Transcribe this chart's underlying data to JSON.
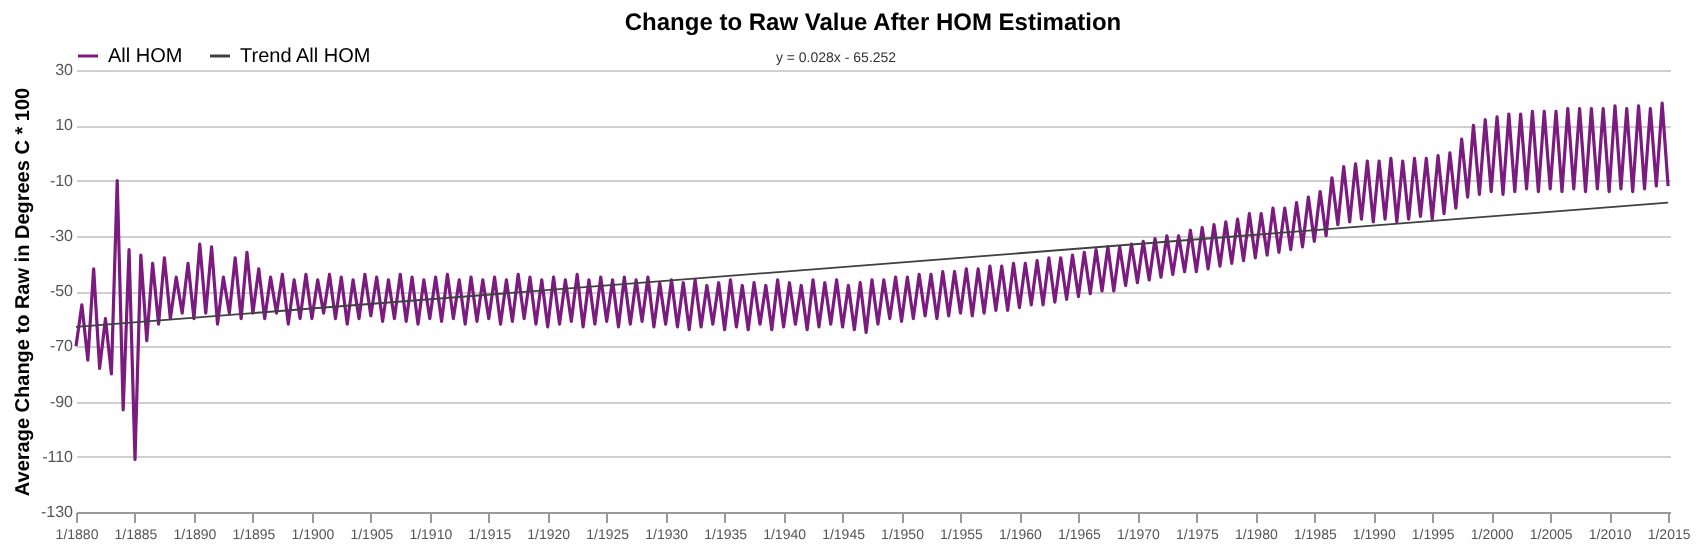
{
  "chart_data": {
    "type": "line",
    "title": "Change to Raw Value After HOM Estimation",
    "ylabel": "Average Change to Raw in Degrees C * 100",
    "annotations": [
      "y = 0.028x - 65.252"
    ],
    "legend": "top",
    "grid": "y",
    "marker": "none",
    "line_style": "solid",
    "ylim": [
      -130,
      30
    ],
    "yticks": [
      -130,
      -110,
      -90,
      -70,
      -50,
      -30,
      -10,
      10,
      30
    ],
    "xlim": [
      "1880-01",
      "2015-03"
    ],
    "xticks": [
      {
        "value": "1880-01",
        "label": "1/1880"
      },
      {
        "value": "1885-01",
        "label": "1/1885"
      },
      {
        "value": "1890-01",
        "label": "1/1890"
      },
      {
        "value": "1895-01",
        "label": "1/1895"
      },
      {
        "value": "1900-01",
        "label": "1/1900"
      },
      {
        "value": "1905-01",
        "label": "1/1905"
      },
      {
        "value": "1910-01",
        "label": "1/1910"
      },
      {
        "value": "1915-01",
        "label": "1/1915"
      },
      {
        "value": "1920-01",
        "label": "1/1920"
      },
      {
        "value": "1925-01",
        "label": "1/1925"
      },
      {
        "value": "1930-01",
        "label": "1/1930"
      },
      {
        "value": "1935-01",
        "label": "1/1935"
      },
      {
        "value": "1940-01",
        "label": "1/1940"
      },
      {
        "value": "1945-01",
        "label": "1/1945"
      },
      {
        "value": "1950-01",
        "label": "1/1950"
      },
      {
        "value": "1955-01",
        "label": "1/1955"
      },
      {
        "value": "1960-01",
        "label": "1/1960"
      },
      {
        "value": "1965-01",
        "label": "1/1965"
      },
      {
        "value": "1970-01",
        "label": "1/1970"
      },
      {
        "value": "1975-01",
        "label": "1/1975"
      },
      {
        "value": "1980-01",
        "label": "1/1980"
      },
      {
        "value": "1985-01",
        "label": "1/1985"
      },
      {
        "value": "1990-01",
        "label": "1/1990"
      },
      {
        "value": "1995-01",
        "label": "1/1995"
      },
      {
        "value": "2000-01",
        "label": "1/2000"
      },
      {
        "value": "2005-01",
        "label": "1/2005"
      },
      {
        "value": "2010-01",
        "label": "1/2010"
      },
      {
        "value": "2015-01",
        "label": "1/2015"
      }
    ],
    "series": [
      {
        "name": "All HOM",
        "color": "#7b1a7f",
        "x": [
          "1880-01",
          "1880-07",
          "1881-01",
          "1881-07",
          "1882-01",
          "1882-07",
          "1883-01",
          "1883-07",
          "1884-01",
          "1884-07",
          "1885-01",
          "1885-07",
          "1886-01",
          "1886-07",
          "1887-01",
          "1887-07",
          "1888-01",
          "1888-07",
          "1889-01",
          "1889-07",
          "1890-01",
          "1890-07",
          "1891-01",
          "1891-07",
          "1892-01",
          "1892-07",
          "1893-01",
          "1893-07",
          "1894-01",
          "1894-07",
          "1895-01",
          "1895-07",
          "1896-01",
          "1896-07",
          "1897-01",
          "1897-07",
          "1898-01",
          "1898-07",
          "1899-01",
          "1899-07",
          "1900-01",
          "1900-07",
          "1901-01",
          "1901-07",
          "1902-01",
          "1902-07",
          "1903-01",
          "1903-07",
          "1904-01",
          "1904-07",
          "1905-01",
          "1905-07",
          "1906-01",
          "1906-07",
          "1907-01",
          "1907-07",
          "1908-01",
          "1908-07",
          "1909-01",
          "1909-07",
          "1910-01",
          "1910-07",
          "1911-01",
          "1911-07",
          "1912-01",
          "1912-07",
          "1913-01",
          "1913-07",
          "1914-01",
          "1914-07",
          "1915-01",
          "1915-07",
          "1916-01",
          "1916-07",
          "1917-01",
          "1917-07",
          "1918-01",
          "1918-07",
          "1919-01",
          "1919-07",
          "1920-01",
          "1920-07",
          "1921-01",
          "1921-07",
          "1922-01",
          "1922-07",
          "1923-01",
          "1923-07",
          "1924-01",
          "1924-07",
          "1925-01",
          "1925-07",
          "1926-01",
          "1926-07",
          "1927-01",
          "1927-07",
          "1928-01",
          "1928-07",
          "1929-01",
          "1929-07",
          "1930-01",
          "1930-07",
          "1931-01",
          "1931-07",
          "1932-01",
          "1932-07",
          "1933-01",
          "1933-07",
          "1934-01",
          "1934-07",
          "1935-01",
          "1935-07",
          "1936-01",
          "1936-07",
          "1937-01",
          "1937-07",
          "1938-01",
          "1938-07",
          "1939-01",
          "1939-07",
          "1940-01",
          "1940-07",
          "1941-01",
          "1941-07",
          "1942-01",
          "1942-07",
          "1943-01",
          "1943-07",
          "1944-01",
          "1944-07",
          "1945-01",
          "1945-07",
          "1946-01",
          "1946-07",
          "1947-01",
          "1947-07",
          "1948-01",
          "1948-07",
          "1949-01",
          "1949-07",
          "1950-01",
          "1950-07",
          "1951-01",
          "1951-07",
          "1952-01",
          "1952-07",
          "1953-01",
          "1953-07",
          "1954-01",
          "1954-07",
          "1955-01",
          "1955-07",
          "1956-01",
          "1956-07",
          "1957-01",
          "1957-07",
          "1958-01",
          "1958-07",
          "1959-01",
          "1959-07",
          "1960-01",
          "1960-07",
          "1961-01",
          "1961-07",
          "1962-01",
          "1962-07",
          "1963-01",
          "1963-07",
          "1964-01",
          "1964-07",
          "1965-01",
          "1965-07",
          "1966-01",
          "1966-07",
          "1967-01",
          "1967-07",
          "1968-01",
          "1968-07",
          "1969-01",
          "1969-07",
          "1970-01",
          "1970-07",
          "1971-01",
          "1971-07",
          "1972-01",
          "1972-07",
          "1973-01",
          "1973-07",
          "1974-01",
          "1974-07",
          "1975-01",
          "1975-07",
          "1976-01",
          "1976-07",
          "1977-01",
          "1977-07",
          "1978-01",
          "1978-07",
          "1979-01",
          "1979-07",
          "1980-01",
          "1980-07",
          "1981-01",
          "1981-07",
          "1982-01",
          "1982-07",
          "1983-01",
          "1983-07",
          "1984-01",
          "1984-07",
          "1985-01",
          "1985-07",
          "1986-01",
          "1986-07",
          "1987-01",
          "1987-07",
          "1988-01",
          "1988-07",
          "1989-01",
          "1989-07",
          "1990-01",
          "1990-07",
          "1991-01",
          "1991-07",
          "1992-01",
          "1992-07",
          "1993-01",
          "1993-07",
          "1994-01",
          "1994-07",
          "1995-01",
          "1995-07",
          "1996-01",
          "1996-07",
          "1997-01",
          "1997-07",
          "1998-01",
          "1998-07",
          "1999-01",
          "1999-07",
          "2000-01",
          "2000-07",
          "2001-01",
          "2001-07",
          "2002-01",
          "2002-07",
          "2003-01",
          "2003-07",
          "2004-01",
          "2004-07",
          "2005-01",
          "2005-07",
          "2006-01",
          "2006-07",
          "2007-01",
          "2007-07",
          "2008-01",
          "2008-07",
          "2009-01",
          "2009-07",
          "2010-01",
          "2010-07",
          "2011-01",
          "2011-07",
          "2012-01",
          "2012-07",
          "2013-01",
          "2013-07",
          "2014-01",
          "2014-07",
          "2015-01"
        ],
        "values": [
          -70,
          -55,
          -75,
          -42,
          -78,
          -60,
          -80,
          -10,
          -93,
          -35,
          -111,
          -37,
          -68,
          -40,
          -62,
          -38,
          -60,
          -45,
          -58,
          -40,
          -60,
          -33,
          -58,
          -34,
          -62,
          -45,
          -58,
          -38,
          -60,
          -36,
          -58,
          -42,
          -60,
          -45,
          -58,
          -44,
          -62,
          -46,
          -60,
          -44,
          -60,
          -46,
          -58,
          -44,
          -60,
          -45,
          -62,
          -46,
          -60,
          -44,
          -59,
          -45,
          -61,
          -46,
          -60,
          -44,
          -61,
          -45,
          -62,
          -46,
          -60,
          -45,
          -61,
          -44,
          -60,
          -46,
          -62,
          -45,
          -61,
          -46,
          -60,
          -45,
          -62,
          -46,
          -61,
          -44,
          -60,
          -45,
          -62,
          -46,
          -63,
          -45,
          -62,
          -46,
          -61,
          -44,
          -63,
          -46,
          -62,
          -45,
          -61,
          -46,
          -63,
          -45,
          -62,
          -46,
          -61,
          -45,
          -63,
          -47,
          -62,
          -46,
          -63,
          -47,
          -64,
          -46,
          -63,
          -48,
          -62,
          -47,
          -64,
          -46,
          -63,
          -48,
          -64,
          -47,
          -62,
          -48,
          -64,
          -46,
          -63,
          -47,
          -62,
          -48,
          -64,
          -46,
          -63,
          -47,
          -62,
          -46,
          -63,
          -48,
          -64,
          -47,
          -65,
          -46,
          -62,
          -46,
          -60,
          -45,
          -61,
          -45,
          -60,
          -44,
          -59,
          -44,
          -60,
          -43,
          -59,
          -43,
          -58,
          -42,
          -59,
          -42,
          -58,
          -41,
          -57,
          -41,
          -57,
          -40,
          -56,
          -40,
          -55,
          -39,
          -55,
          -38,
          -54,
          -38,
          -53,
          -37,
          -52,
          -36,
          -51,
          -35,
          -50,
          -34,
          -50,
          -34,
          -48,
          -33,
          -47,
          -32,
          -46,
          -31,
          -45,
          -30,
          -44,
          -30,
          -43,
          -28,
          -43,
          -27,
          -42,
          -26,
          -41,
          -25,
          -40,
          -24,
          -39,
          -22,
          -38,
          -22,
          -37,
          -20,
          -36,
          -20,
          -35,
          -18,
          -34,
          -16,
          -32,
          -14,
          -30,
          -9,
          -26,
          -5,
          -25,
          -4,
          -24,
          -3,
          -25,
          -3,
          -24,
          -2,
          -25,
          -3,
          -24,
          -2,
          -23,
          -2,
          -24,
          -1,
          -22,
          0,
          -20,
          5,
          -16,
          10,
          -15,
          12,
          -14,
          13,
          -15,
          14,
          -14,
          14,
          -13,
          15,
          -14,
          15,
          -13,
          15,
          -14,
          16,
          -13,
          16,
          -14,
          16,
          -13,
          16,
          -14,
          17,
          -13,
          16,
          -14,
          17,
          -13,
          16,
          -12,
          18,
          -12
        ]
      },
      {
        "name": "Trend All HOM",
        "color": "#404040",
        "x": [
          "1880-01",
          "2015-01"
        ],
        "values": [
          -63,
          -18
        ]
      }
    ]
  }
}
